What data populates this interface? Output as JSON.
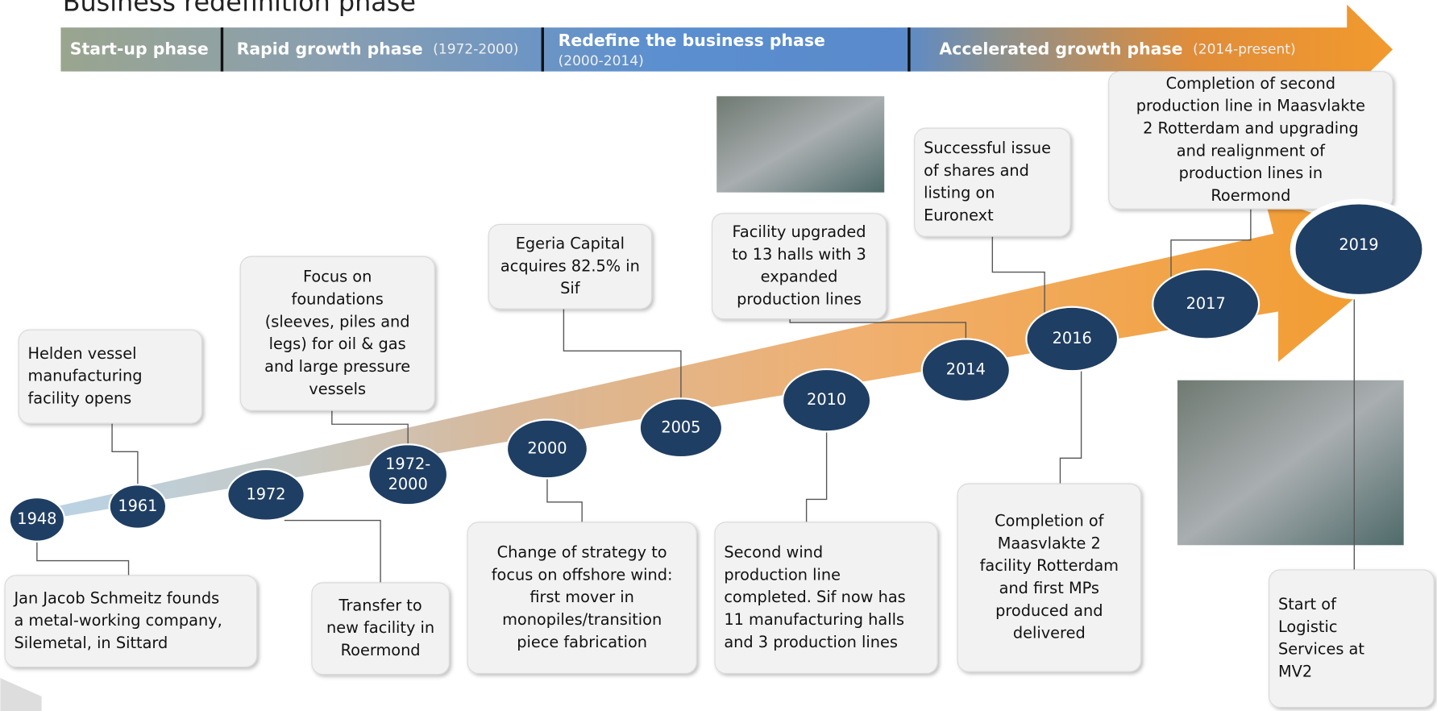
{
  "title": "Business redefinition phase",
  "phases": [
    {
      "name": "Start-up phase"
    },
    {
      "name": "Rapid growth phase",
      "period": "(1972-2000)"
    },
    {
      "name": "Redefine the business phase",
      "period": "(2000-2014)"
    },
    {
      "name": "Accelerated growth phase",
      "period": "(2014-present)"
    }
  ],
  "nodes": [
    {
      "label": [
        "1948"
      ]
    },
    {
      "label": [
        "1961"
      ]
    },
    {
      "label": [
        "1972"
      ]
    },
    {
      "label": [
        "1972-",
        "2000"
      ]
    },
    {
      "label": [
        "2000"
      ]
    },
    {
      "label": [
        "2005"
      ]
    },
    {
      "label": [
        "2010"
      ]
    },
    {
      "label": [
        "2014"
      ]
    },
    {
      "label": [
        "2016"
      ]
    },
    {
      "label": [
        "2017"
      ]
    },
    {
      "label": [
        "2019"
      ]
    }
  ],
  "notes": [
    {
      "lines": [
        "Jan Jacob Schmeitz founds",
        "a metal-working company,",
        "Silemetal, in Sittard"
      ]
    },
    {
      "lines": [
        "Helden vessel",
        "manufacturing",
        "facility opens"
      ]
    },
    {
      "lines": [
        "Transfer to",
        "new facility in",
        "Roermond"
      ]
    },
    {
      "lines": [
        "Focus on",
        "foundations",
        "(sleeves, piles and",
        "legs) for oil & gas",
        "and large pressure",
        "vessels"
      ]
    },
    {
      "lines": [
        "Change of strategy to",
        "focus on offshore wind:",
        "first mover in",
        "monopiles/transition",
        "piece fabrication"
      ]
    },
    {
      "lines": [
        "Egeria Capital",
        "acquires 82.5% in",
        "Sif"
      ]
    },
    {
      "lines": [
        "Second wind",
        "production line",
        "completed. Sif now has",
        "11 manufacturing halls",
        "and 3 production lines"
      ]
    },
    {
      "lines": [
        "Facility upgraded",
        "to 13 halls with 3",
        "expanded",
        "production lines"
      ]
    },
    {
      "lines": [
        "Successful issue",
        "of shares and",
        "listing on",
        "Euronext"
      ]
    },
    {
      "lines": [
        "Completion of",
        "Maasvlakte 2",
        "facility Rotterdam",
        "and first MPs",
        "produced and",
        "delivered"
      ]
    },
    {
      "lines": [
        "Completion of second",
        "production line in Maasvlakte",
        "2 Rotterdam and upgrading",
        "and realignment of",
        "production lines  in",
        "Roermond"
      ]
    },
    {
      "lines": [
        "Start of",
        "Logistic",
        "Services at",
        "MV2"
      ]
    }
  ]
}
